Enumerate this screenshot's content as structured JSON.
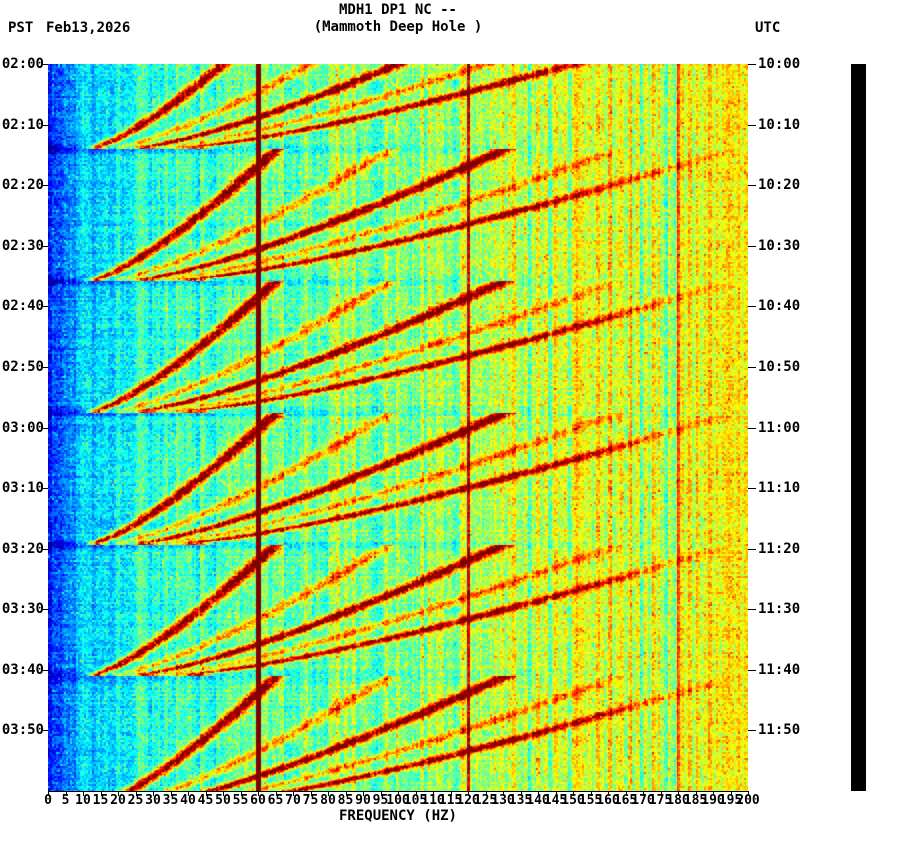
{
  "header": {
    "left_tz": "PST",
    "date": "Feb13,2026",
    "title_line1": "MDH1 DP1 NC --",
    "title_line2": "(Mammoth Deep Hole )",
    "right_tz": "UTC"
  },
  "chart_data": {
    "type": "heatmap",
    "subtype": "seismic-spectrogram",
    "title": "MDH1 DP1 NC -- (Mammoth Deep Hole )",
    "xlabel": "FREQUENCY (HZ)",
    "x_range": [
      0,
      200
    ],
    "x_tick_step": 5,
    "x_ticks": [
      0,
      5,
      10,
      15,
      20,
      25,
      30,
      35,
      40,
      45,
      50,
      55,
      60,
      65,
      70,
      75,
      80,
      85,
      90,
      95,
      100,
      105,
      110,
      115,
      120,
      125,
      130,
      135,
      140,
      145,
      150,
      155,
      160,
      165,
      170,
      175,
      180,
      185,
      190,
      195,
      200
    ],
    "time_span_minutes": 120,
    "y_axis_left": {
      "timezone": "PST",
      "date": "Feb13,2026",
      "ticks": [
        "02:00",
        "02:10",
        "02:20",
        "02:30",
        "02:40",
        "02:50",
        "03:00",
        "03:10",
        "03:20",
        "03:30",
        "03:40",
        "03:50"
      ]
    },
    "y_axis_right": {
      "timezone": "UTC",
      "ticks": [
        "10:00",
        "10:10",
        "10:20",
        "10:30",
        "10:40",
        "10:50",
        "11:00",
        "11:10",
        "11:20",
        "11:30",
        "11:40",
        "11:50"
      ]
    },
    "colormap": "jet",
    "features": {
      "mains_hum_hz": 60,
      "mains_harmonics_hz": [
        120,
        180
      ],
      "event_times_min": [
        13.5,
        35.3,
        57,
        78.8,
        100.5,
        122.3
      ],
      "event_period_min": 21.75,
      "arc_fundamental_start_hz": 14,
      "arc_fundamental_rise_hz": 52,
      "arc_harmonics": [
        1,
        1.5,
        2,
        2.5,
        3
      ],
      "arc_harmonic_strengths": [
        1,
        0.45,
        0.95,
        0.4,
        0.85
      ],
      "background_levels": "deep blue below ~6 Hz, light blue 6-20 Hz, cyan-green 20-120 Hz, yellow-green speckled 120-200 Hz",
      "light_band_after_events": true,
      "noise_seed": 7
    },
    "colors": {
      "line_60hz": "#800000",
      "colorbar": "#000000",
      "axis": "#000000",
      "background": "#ffffff"
    }
  }
}
